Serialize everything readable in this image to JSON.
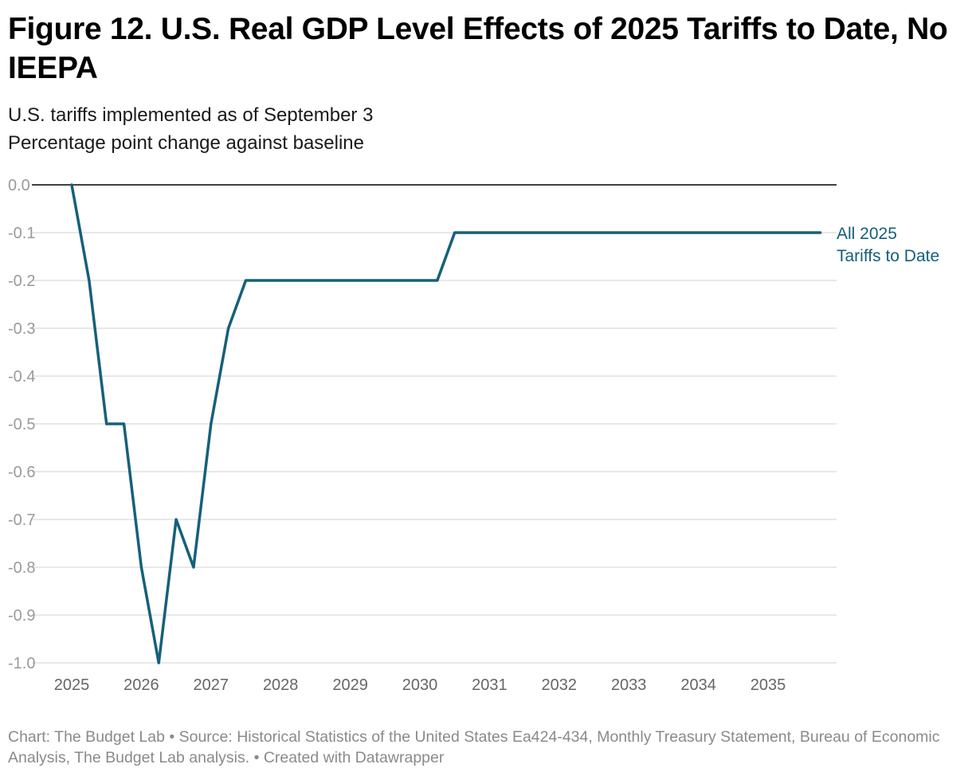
{
  "title": "Figure 12. U.S. Real GDP Level Effects of 2025 Tariffs to Date, No IEEPA",
  "subtitle_lines": [
    "U.S. tariffs implemented as of September 3",
    "Percentage point change against baseline"
  ],
  "footer": "Chart: The Budget Lab • Source: Historical Statistics of the United States Ea424-434, Monthly Treasury Statement, Bureau of Economic Analysis, The Budget Lab analysis.  • Created with Datawrapper",
  "chart_data": {
    "type": "line",
    "title": "Figure 12. U.S. Real GDP Level Effects of 2025 Tariffs to Date, No IEEPA",
    "xlabel": "",
    "ylabel": "",
    "ylim": [
      -1.0,
      0.0
    ],
    "xlim": [
      "2025-Q1",
      "2035-Q4"
    ],
    "grid": true,
    "y_ticks": [
      "0.0",
      "-0.1",
      "-0.2",
      "-0.3",
      "-0.4",
      "-0.5",
      "-0.6",
      "-0.7",
      "-0.8",
      "-0.9",
      "-1.0"
    ],
    "x_ticks": [
      "2025",
      "2026",
      "2027",
      "2028",
      "2029",
      "2030",
      "2031",
      "2032",
      "2033",
      "2034",
      "2035"
    ],
    "line_color": "#15607a",
    "x": [
      "2025-Q1",
      "2025-Q2",
      "2025-Q3",
      "2025-Q4",
      "2026-Q1",
      "2026-Q2",
      "2026-Q3",
      "2026-Q4",
      "2027-Q1",
      "2027-Q2",
      "2027-Q3",
      "2027-Q4",
      "2028-Q1",
      "2028-Q2",
      "2028-Q3",
      "2028-Q4",
      "2029-Q1",
      "2029-Q2",
      "2029-Q3",
      "2029-Q4",
      "2030-Q1",
      "2030-Q2",
      "2030-Q3",
      "2030-Q4",
      "2031-Q1",
      "2031-Q2",
      "2031-Q3",
      "2031-Q4",
      "2032-Q1",
      "2032-Q2",
      "2032-Q3",
      "2032-Q4",
      "2033-Q1",
      "2033-Q2",
      "2033-Q3",
      "2033-Q4",
      "2034-Q1",
      "2034-Q2",
      "2034-Q3",
      "2034-Q4",
      "2035-Q1",
      "2035-Q2",
      "2035-Q3",
      "2035-Q4"
    ],
    "series": [
      {
        "name": "All 2025 Tariffs to Date",
        "label_lines": [
          "All 2025",
          "Tariffs to Date"
        ],
        "values": [
          0,
          -0.2,
          -0.5,
          -0.5,
          -0.8,
          -1.0,
          -0.7,
          -0.8,
          -0.5,
          -0.3,
          -0.2,
          -0.2,
          -0.2,
          -0.2,
          -0.2,
          -0.2,
          -0.2,
          -0.2,
          -0.2,
          -0.2,
          -0.2,
          -0.2,
          -0.1,
          -0.1,
          -0.1,
          -0.1,
          -0.1,
          -0.1,
          -0.1,
          -0.1,
          -0.1,
          -0.1,
          -0.1,
          -0.1,
          -0.1,
          -0.1,
          -0.1,
          -0.1,
          -0.1,
          -0.1,
          -0.1,
          -0.1,
          -0.1,
          -0.1
        ]
      }
    ]
  }
}
